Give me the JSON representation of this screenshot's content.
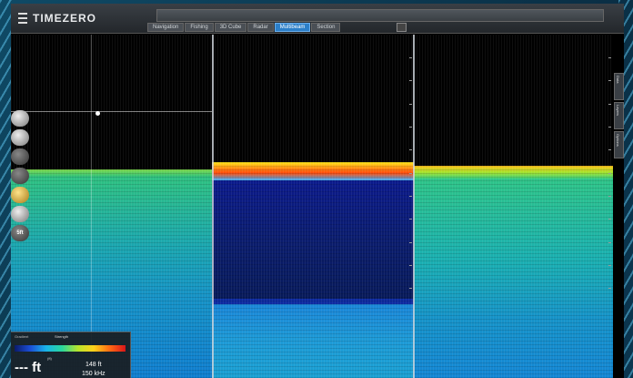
{
  "app": {
    "logo_text": "TIMEZERO"
  },
  "tabs": [
    {
      "label": "Navigation",
      "active": false
    },
    {
      "label": "Fishing",
      "active": false
    },
    {
      "label": "3D Cube",
      "active": false
    },
    {
      "label": "Radar",
      "active": false
    },
    {
      "label": "Multibeam",
      "active": true
    },
    {
      "label": "Section",
      "active": false
    }
  ],
  "mode_toolbar": {
    "buttons": [
      "seabed-profile-icon",
      "fish-school-icon",
      "bathy-layer-icon",
      "diver-icon"
    ],
    "active_index": 2
  },
  "left_tools": [
    "compass-icon",
    "pen-icon",
    "marker-icon",
    "ship-icon",
    "coin-icon",
    "gauge-icon"
  ],
  "left_tools_last_label": "5ft",
  "info_panel": {
    "gain_label": "Gradient",
    "gain_title": "Strength",
    "depth_value": "--- ft",
    "depth_unit_small": "(ft)",
    "range_value": "148 ft",
    "freq_value": "150 kHz"
  },
  "colors": {
    "accent": "#2c7fc9",
    "background": "#0d3a52"
  },
  "side_tabs": [
    "Data",
    "Layers",
    "Options"
  ]
}
